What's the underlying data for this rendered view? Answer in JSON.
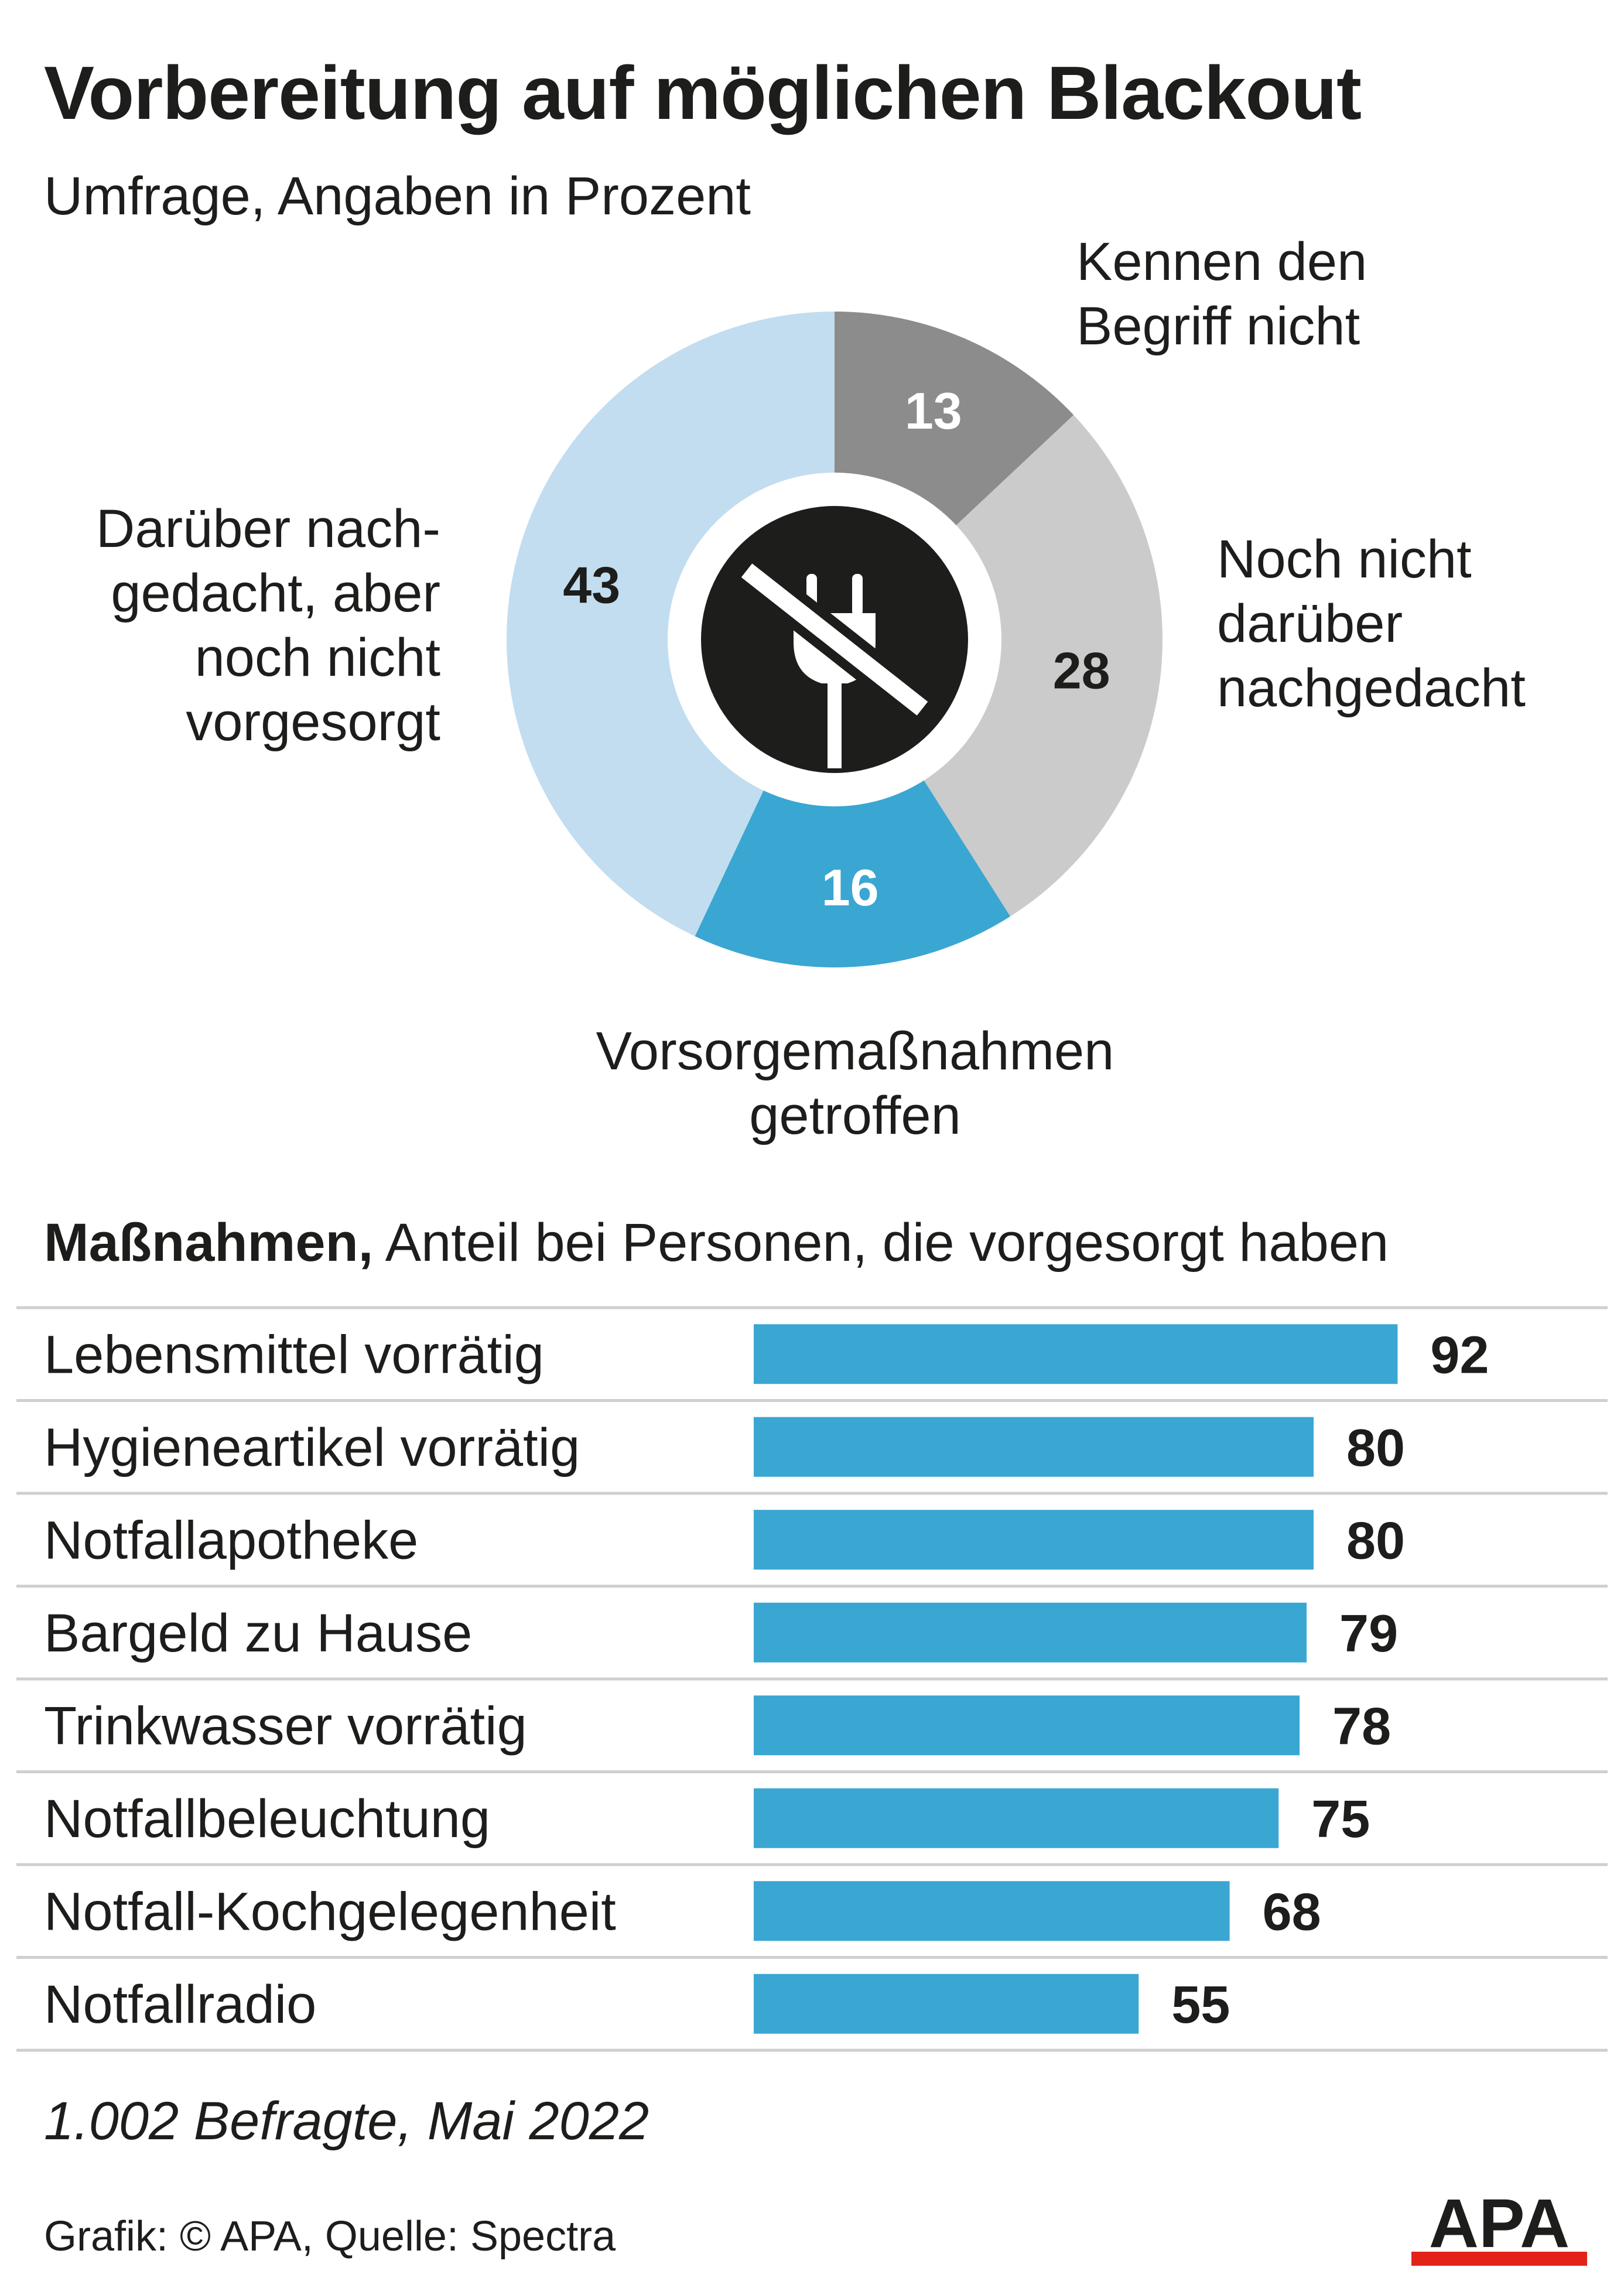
{
  "title": "Vorbereitung auf möglichen Blackout",
  "subtitle": "Umfrage, Angaben in Prozent",
  "colors": {
    "text": "#1d1d1b",
    "bar": "#3aa6d2",
    "grid": "#cfcfcf",
    "plug_disc": "#1d1d1b",
    "logo_red": "#e2231a"
  },
  "chart_data": [
    {
      "type": "pie",
      "variant": "donut",
      "center_icon": "unplugged-plug-icon",
      "slices": [
        {
          "label_lines": [
            "Kennen den",
            "Begriff nicht"
          ],
          "value": 13,
          "color": "#8c8c8c",
          "value_color": "#ffffff"
        },
        {
          "label_lines": [
            "Noch nicht",
            "darüber",
            "nachgedacht"
          ],
          "value": 28,
          "color": "#cbcbcb",
          "value_color": "#1d1d1b"
        },
        {
          "label_lines": [
            "Vorsorgemaßnahmen",
            "getroffen"
          ],
          "value": 16,
          "color": "#3aa6d2",
          "value_color": "#ffffff"
        },
        {
          "label_lines": [
            "Darüber nach-",
            "gedacht, aber",
            "noch nicht",
            "vorgesorgt"
          ],
          "value": 43,
          "color": "#c2ddef",
          "value_color": "#1d1d1b"
        }
      ]
    },
    {
      "type": "bar",
      "orientation": "horizontal",
      "title_bold": "Maßnahmen,",
      "title_rest": " Anteil bei Personen, die vorgesorgt haben",
      "xlim": [
        0,
        100
      ],
      "categories": [
        "Lebensmittel vorrätig",
        "Hygieneartikel vorrätig",
        "Notfallapotheke",
        "Bargeld zu Hause",
        "Trinkwasser vorrätig",
        "Notfallbeleuchtung",
        "Notfall-Kochgelegenheit",
        "Notfallradio"
      ],
      "values": [
        92,
        80,
        80,
        79,
        78,
        75,
        68,
        55
      ]
    }
  ],
  "note": "1.002 Befragte, Mai 2022",
  "credit": "Grafik: © APA, Quelle: Spectra",
  "logo_text": "APA"
}
